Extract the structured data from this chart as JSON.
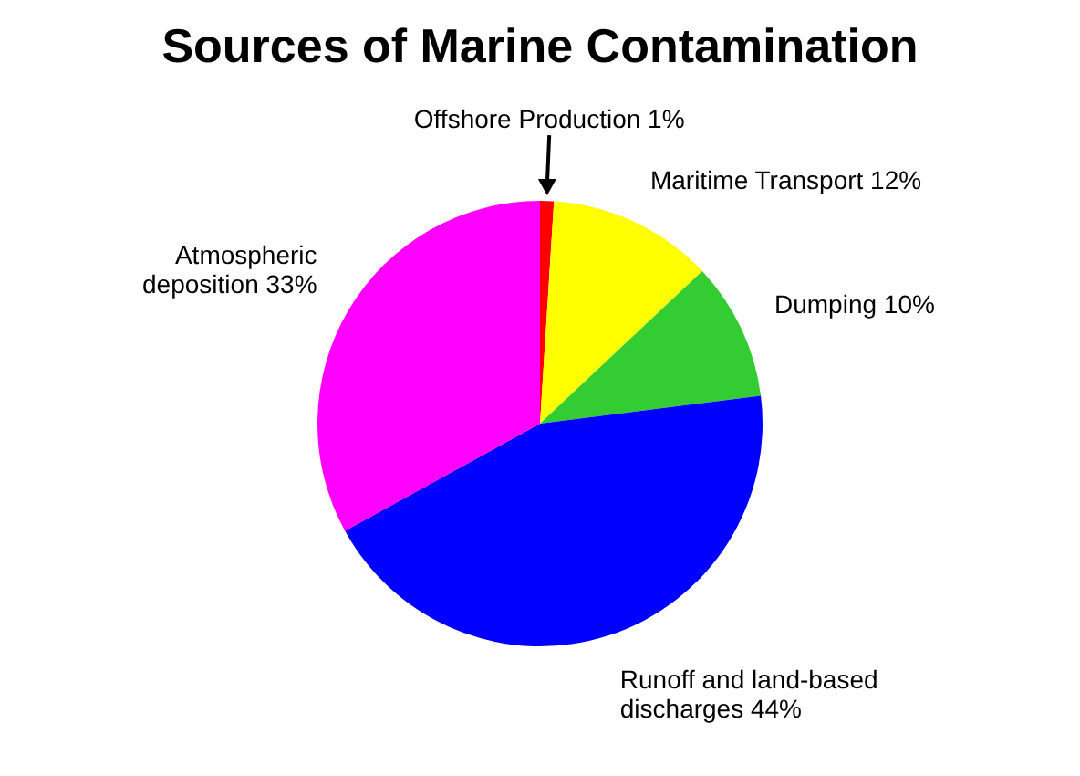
{
  "chart_data": {
    "type": "pie",
    "title": "Sources of Marine Contamination",
    "categories": [
      "Offshore Production",
      "Maritime Transport",
      "Dumping",
      "Runoff and land-based discharges",
      "Atmospheric deposition"
    ],
    "values": [
      1,
      12,
      10,
      44,
      33
    ],
    "value_labels": [
      "1%",
      "12%",
      "10%",
      "44%",
      "33%"
    ],
    "colors": [
      "#ff0000",
      "#ffff00",
      "#33cc33",
      "#0000ff",
      "#ff00ff"
    ]
  }
}
